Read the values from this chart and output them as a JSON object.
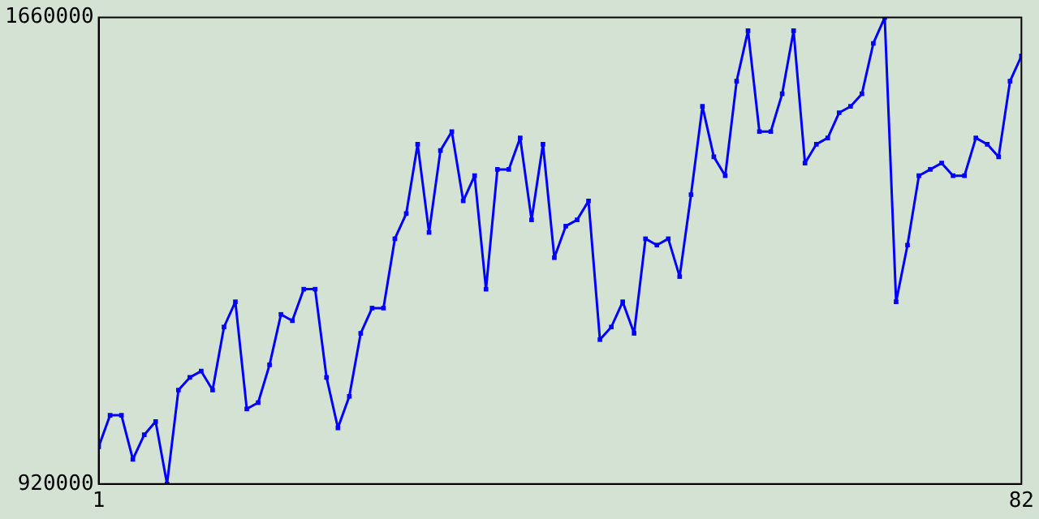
{
  "chart_data": {
    "type": "line",
    "marker": "square",
    "x": [
      1,
      2,
      3,
      4,
      5,
      6,
      7,
      8,
      9,
      10,
      11,
      12,
      13,
      14,
      15,
      16,
      17,
      18,
      19,
      20,
      21,
      22,
      23,
      24,
      25,
      26,
      27,
      28,
      29,
      30,
      31,
      32,
      33,
      34,
      35,
      36,
      37,
      38,
      39,
      40,
      41,
      42,
      43,
      44,
      45,
      46,
      47,
      48,
      49,
      50,
      51,
      52,
      53,
      54,
      55,
      56,
      57,
      58,
      59,
      60,
      61,
      62,
      63,
      64,
      65,
      66,
      67,
      68,
      69,
      70,
      71,
      72,
      73,
      74,
      75,
      76,
      77,
      78,
      79,
      80,
      81,
      82
    ],
    "series": [
      {
        "color": "#0000ff",
        "values": [
          979000,
          1029000,
          1029000,
          959000,
          998000,
          1019000,
          920000,
          1069000,
          1089000,
          1099000,
          1069000,
          1169000,
          1209000,
          1039000,
          1049000,
          1109000,
          1189000,
          1179000,
          1229000,
          1229000,
          1089000,
          1009000,
          1059000,
          1159000,
          1199000,
          1199000,
          1309000,
          1349000,
          1459000,
          1319000,
          1449000,
          1479000,
          1369000,
          1409000,
          1229000,
          1419000,
          1419000,
          1469000,
          1339000,
          1459000,
          1279000,
          1329000,
          1339000,
          1369000,
          1149000,
          1169000,
          1209000,
          1159000,
          1309000,
          1299000,
          1309000,
          1249000,
          1379000,
          1519000,
          1439000,
          1409000,
          1559000,
          1639000,
          1479000,
          1479000,
          1539000,
          1639000,
          1429000,
          1459000,
          1469000,
          1509000,
          1519000,
          1539000,
          1619000,
          1660000,
          1209000,
          1299000,
          1409000,
          1419000,
          1429000,
          1409000,
          1409000,
          1469000,
          1459000,
          1439000,
          1559000,
          1599000
        ]
      }
    ],
    "xlim": [
      1,
      82
    ],
    "xticks": [
      1,
      82
    ],
    "ylim": [
      920000,
      1660000
    ],
    "yticks": [
      920000,
      1660000
    ]
  }
}
